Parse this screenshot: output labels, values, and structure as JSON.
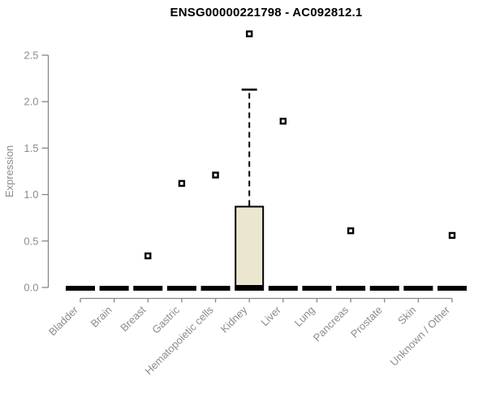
{
  "chart_data": {
    "type": "boxplot",
    "title": "ENSG00000221798 - AC092812.1",
    "xlabel": "",
    "ylabel": "Expression",
    "ylim": [
      0,
      2.5
    ],
    "yticks": [
      0.0,
      0.5,
      1.0,
      1.5,
      2.0,
      2.5
    ],
    "ytick_labels": [
      "0.0",
      "0.5",
      "1.0",
      "1.5",
      "2.0",
      "2.5"
    ],
    "grid": false,
    "legend": null,
    "categories": [
      "Bladder",
      "Brain",
      "Breast",
      "Gastric",
      "Hematopoietic cells",
      "Kidney",
      "Liver",
      "Lung",
      "Pancreas",
      "Prostate",
      "Skin",
      "Unknown / Other"
    ],
    "boxes": [
      {
        "category": "Bladder",
        "median": 0,
        "q1": 0,
        "q3": 0,
        "whisker_low": 0,
        "whisker_high": 0,
        "outliers": []
      },
      {
        "category": "Brain",
        "median": 0,
        "q1": 0,
        "q3": 0,
        "whisker_low": 0,
        "whisker_high": 0,
        "outliers": []
      },
      {
        "category": "Breast",
        "median": 0,
        "q1": 0,
        "q3": 0,
        "whisker_low": 0,
        "whisker_high": 0,
        "outliers": [
          0.34
        ]
      },
      {
        "category": "Gastric",
        "median": 0,
        "q1": 0,
        "q3": 0,
        "whisker_low": 0,
        "whisker_high": 0,
        "outliers": [
          1.12
        ]
      },
      {
        "category": "Hematopoietic cells",
        "median": 0,
        "q1": 0,
        "q3": 0,
        "whisker_low": 0,
        "whisker_high": 0,
        "outliers": [
          1.21
        ]
      },
      {
        "category": "Kidney",
        "median": 0,
        "q1": 0,
        "q3": 0.87,
        "whisker_low": 0,
        "whisker_high": 2.13,
        "outliers": [
          2.73
        ]
      },
      {
        "category": "Liver",
        "median": 0,
        "q1": 0,
        "q3": 0,
        "whisker_low": 0,
        "whisker_high": 0,
        "outliers": [
          1.79
        ]
      },
      {
        "category": "Lung",
        "median": 0,
        "q1": 0,
        "q3": 0,
        "whisker_low": 0,
        "whisker_high": 0,
        "outliers": []
      },
      {
        "category": "Pancreas",
        "median": 0,
        "q1": 0,
        "q3": 0,
        "whisker_low": 0,
        "whisker_high": 0,
        "outliers": [
          0.61
        ]
      },
      {
        "category": "Prostate",
        "median": 0,
        "q1": 0,
        "q3": 0,
        "whisker_low": 0,
        "whisker_high": 0,
        "outliers": []
      },
      {
        "category": "Skin",
        "median": 0,
        "q1": 0,
        "q3": 0,
        "whisker_low": 0,
        "whisker_high": 0,
        "outliers": []
      },
      {
        "category": "Unknown / Other",
        "median": 0,
        "q1": 0,
        "q3": 0,
        "whisker_low": 0,
        "whisker_high": 0,
        "outliers": [
          0.56
        ]
      }
    ],
    "colors": {
      "box_fill": "#ebe6cf",
      "box_border": "#000000",
      "median_bar": "#000000",
      "outlier": "#000000",
      "axis": "#878787",
      "tick_label": "#8c8c8c",
      "title": "#000000",
      "background": "#ffffff"
    }
  }
}
